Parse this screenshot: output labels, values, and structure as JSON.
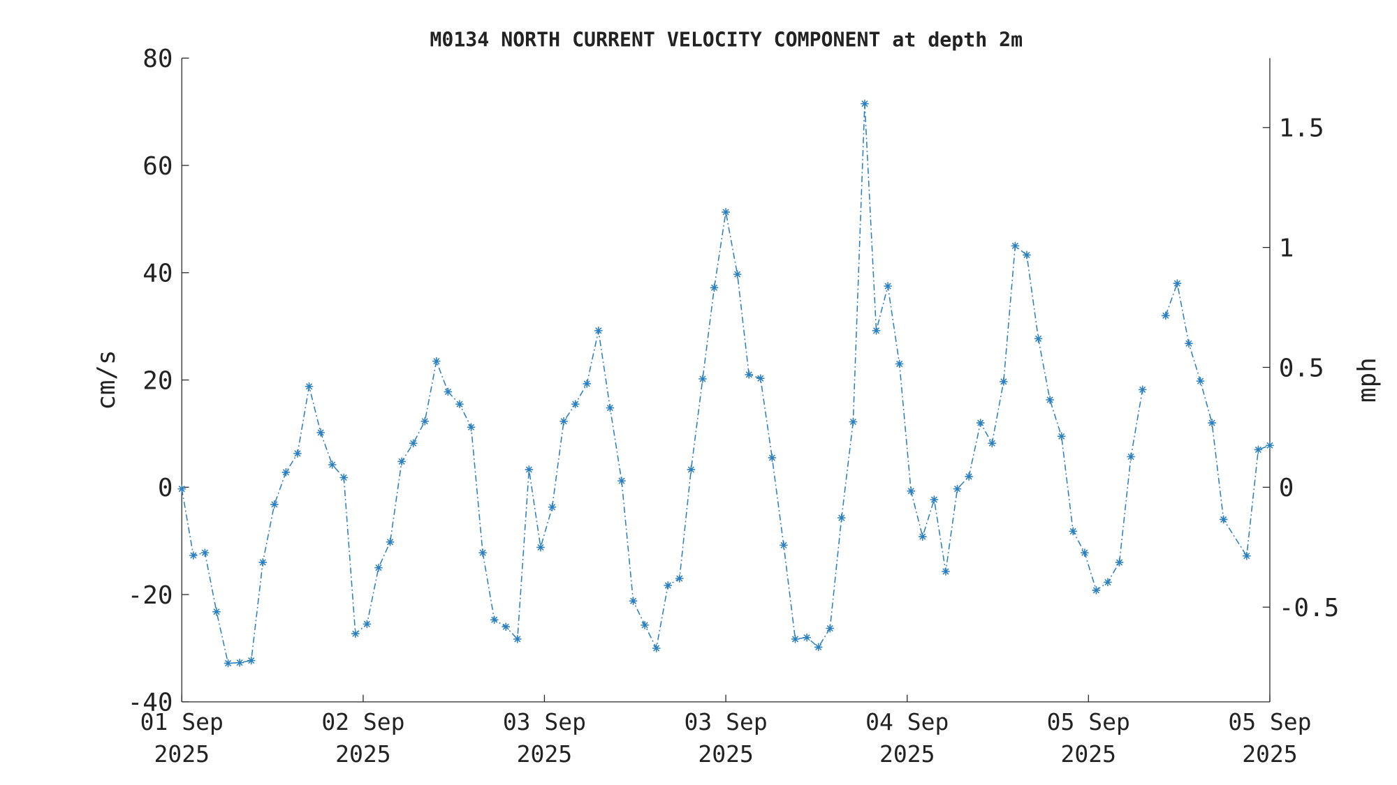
{
  "chart_data": {
    "type": "line",
    "title": "M0134 NORTH CURRENT VELOCITY COMPONENT at depth 2m",
    "ylabel": "cm/s",
    "y2label": "mph",
    "color": "#2a7fc0",
    "marker": "*",
    "linestyle": "dashdot",
    "x": [
      0,
      1,
      2,
      3,
      4,
      5,
      6,
      7,
      8,
      9,
      10,
      11,
      12,
      13,
      14,
      15,
      16,
      17,
      18,
      19,
      20,
      21,
      22,
      23,
      24,
      25,
      26,
      27,
      28,
      29,
      30,
      31,
      32,
      33,
      34,
      35,
      36,
      37,
      38,
      39,
      40,
      41,
      42,
      43,
      44,
      45,
      46,
      47,
      48,
      49,
      50,
      51,
      52,
      53,
      54,
      55,
      56,
      57,
      58,
      59,
      60,
      61,
      62,
      63,
      64,
      65,
      66,
      67,
      68,
      69,
      70,
      71,
      72,
      73,
      74,
      75,
      76,
      77,
      78,
      79,
      80,
      81,
      82,
      83,
      84,
      85,
      86,
      87,
      88,
      89,
      90,
      92,
      93,
      94
    ],
    "values": [
      -0.3,
      -12.7,
      -12.2,
      -23.2,
      -32.8,
      -32.7,
      -32.3,
      -14,
      -3.2,
      2.8,
      6.3,
      18.8,
      10.2,
      4.2,
      1.8,
      -27.3,
      -25.5,
      -15,
      -10.2,
      4.8,
      8.2,
      12.3,
      23.5,
      17.8,
      15.5,
      11.2,
      -12.2,
      -24.7,
      -26,
      -28.3,
      3.3,
      -11.2,
      -3.7,
      12.3,
      15.5,
      19.3,
      29.2,
      14.8,
      1.2,
      -21.2,
      -25.7,
      -30,
      -18.3,
      -17,
      3.3,
      20.2,
      37.2,
      51.3,
      39.7,
      21,
      20.3,
      5.5,
      -10.8,
      -28.3,
      -28,
      -29.8,
      -26.3,
      -5.7,
      12.2,
      71.5,
      29.2,
      37.5,
      23,
      -0.7,
      -9.2,
      -2.3,
      -15.7,
      -0.3,
      2,
      12,
      8.2,
      19.7,
      45,
      43.3,
      27.7,
      16.3,
      9.5,
      -8.2,
      -12.2,
      -19.2,
      -17.7,
      -14,
      5.7,
      18.2,
      null,
      32,
      38,
      26.8,
      19.8,
      12,
      -6,
      -12.8,
      7,
      7.8
    ],
    "xlim": [
      0,
      94
    ],
    "xticks": [
      {
        "value": 0,
        "label": "01 Sep\n2025"
      },
      {
        "value": 15.67,
        "label": "02 Sep\n2025"
      },
      {
        "value": 31.33,
        "label": "03 Sep\n2025"
      },
      {
        "value": 47,
        "label": "03 Sep\n2025"
      },
      {
        "value": 62.67,
        "label": "04 Sep\n2025"
      },
      {
        "value": 78.33,
        "label": "05 Sep\n2025"
      },
      {
        "value": 94,
        "label": "05 Sep\n2025"
      }
    ],
    "ylim": [
      -40,
      80
    ],
    "yticks": [
      -40,
      -20,
      0,
      20,
      40,
      60,
      80
    ],
    "y2lim": [
      -0.8948,
      1.7895
    ],
    "y2ticks": [
      -0.5,
      0,
      0.5,
      1,
      1.5
    ],
    "grid": false
  }
}
